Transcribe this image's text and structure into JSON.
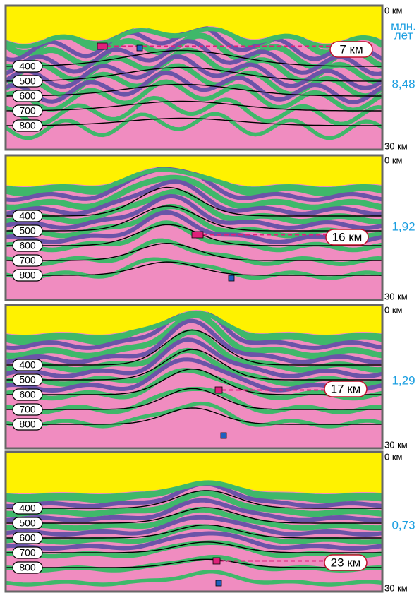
{
  "header": {
    "unit_label": [
      "млн.",
      "лет"
    ]
  },
  "panels": [
    {
      "top": "0 км",
      "bottom": "30 км",
      "age": "8,48",
      "depth": "7 км",
      "isotherms": [
        "400",
        "500",
        "600",
        "700",
        "800"
      ]
    },
    {
      "top": "0 км",
      "bottom": "30 км",
      "age": "1,92",
      "depth": "16 км",
      "isotherms": [
        "400",
        "500",
        "600",
        "700",
        "800"
      ]
    },
    {
      "top": "0 км",
      "bottom": "30 км",
      "age": "1,29",
      "depth": "17 км",
      "isotherms": [
        "400",
        "500",
        "600",
        "700",
        "800"
      ]
    },
    {
      "top": "0 км",
      "bottom": "30 км",
      "age": "0,73",
      "depth": "23 км",
      "isotherms": [
        "400",
        "500",
        "600",
        "700",
        "800"
      ]
    }
  ]
}
